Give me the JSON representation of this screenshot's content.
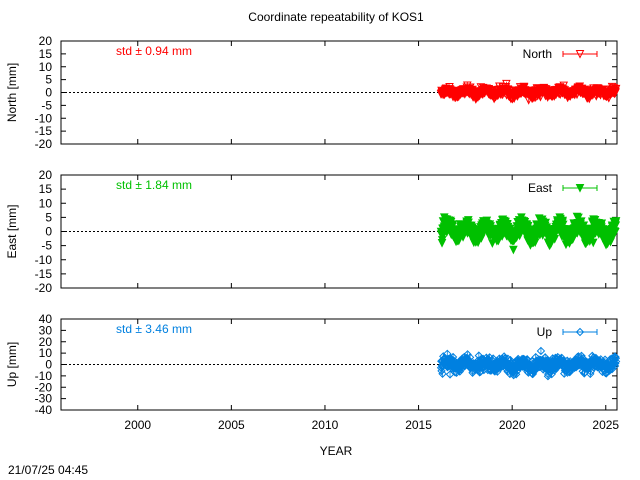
{
  "chart_data": {
    "type": "scatter",
    "title": "Coordinate repeatability of KOS1",
    "xlabel": "YEAR",
    "xlim": [
      1995.9,
      2025.6
    ],
    "x_ticks": [
      2000,
      2005,
      2010,
      2015,
      2020,
      2025
    ],
    "timestamp": "21/07/25 04:45",
    "panels": [
      {
        "name": "North",
        "ylabel": "North [mm]",
        "ylim": [
          -20,
          20
        ],
        "y_ticks": [
          -20,
          -15,
          -10,
          -5,
          0,
          5,
          10,
          15,
          20
        ],
        "std_label": "std ± 0.94 mm",
        "legend": "North",
        "color": "#ff0000",
        "marker": "triangle-down-open",
        "data_range": [
          2016.2,
          2025.55
        ],
        "mean": 0,
        "std": 0.94,
        "seasonal_amplitude": 0.8
      },
      {
        "name": "East",
        "ylabel": "East [mm]",
        "ylim": [
          -20,
          20
        ],
        "y_ticks": [
          -20,
          -15,
          -10,
          -5,
          0,
          5,
          10,
          15,
          20
        ],
        "std_label": "std ± 1.84 mm",
        "legend": "East",
        "color": "#00c000",
        "marker": "triangle-down-filled",
        "data_range": [
          2016.2,
          2025.55
        ],
        "mean": 0,
        "std": 1.84,
        "seasonal_amplitude": 2.3
      },
      {
        "name": "Up",
        "ylabel": "Up [mm]",
        "ylim": [
          -40,
          40
        ],
        "y_ticks": [
          -40,
          -30,
          -20,
          -10,
          0,
          10,
          20,
          30,
          40
        ],
        "std_label": "std ± 3.46 mm",
        "legend": "Up",
        "color": "#0080e0",
        "marker": "diamond-open",
        "data_range": [
          2016.2,
          2025.55
        ],
        "mean": 0,
        "std": 3.46,
        "seasonal_amplitude": 2.5
      }
    ]
  }
}
